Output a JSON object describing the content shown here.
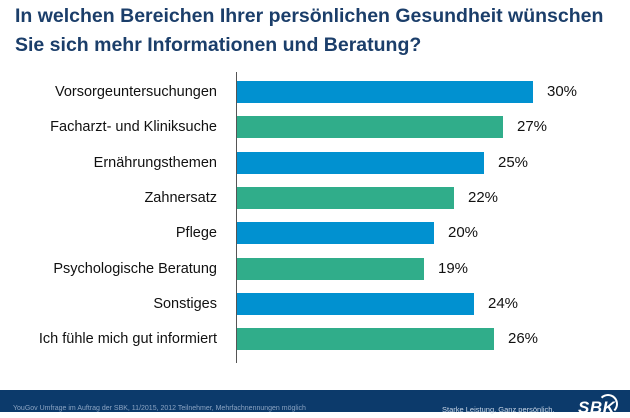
{
  "chart_data": {
    "type": "bar",
    "orientation": "horizontal",
    "title": "In welchen Bereichen Ihrer persönlichen Gesundheit wünschen Sie sich mehr Informationen und Beratung?",
    "categories": [
      "Vorsorgeuntersuchungen",
      "Facharzt- und Kliniksuche",
      "Ernährungsthemen",
      "Zahnersatz",
      "Pflege",
      "Psychologische Beratung",
      "Sonstiges",
      "Ich fühle mich gut informiert"
    ],
    "values": [
      30,
      27,
      25,
      22,
      20,
      19,
      24,
      26
    ],
    "value_labels": [
      "30%",
      "27%",
      "25%",
      "22%",
      "20%",
      "19%",
      "24%",
      "26%"
    ],
    "bar_colors": [
      "#0191d0",
      "#30ad8a",
      "#0191d0",
      "#30ad8a",
      "#0191d0",
      "#30ad8a",
      "#0191d0",
      "#30ad8a"
    ],
    "xlabel": "",
    "ylabel": "",
    "xlim": [
      0,
      30
    ],
    "unit": "%",
    "grid": false,
    "legend": "none"
  },
  "header": {
    "title": "In welchen Bereichen Ihrer persönlichen Gesundheit wünschen Sie sich mehr Informationen und Beratung?"
  },
  "footer": {
    "source_note": "YouGov Umfrage im Auftrag der SBK, 11/2015, 2012 Teilnehmer, Mehrfachnennungen möglich",
    "slogan": "Starke Leistung. Ganz persönlich.",
    "logo_text": "SBK"
  },
  "colors": {
    "title": "#1b3e6a",
    "footer_background": "#0c3a6b",
    "blue_bar": "#0191d0",
    "green_bar": "#30ad8a"
  }
}
